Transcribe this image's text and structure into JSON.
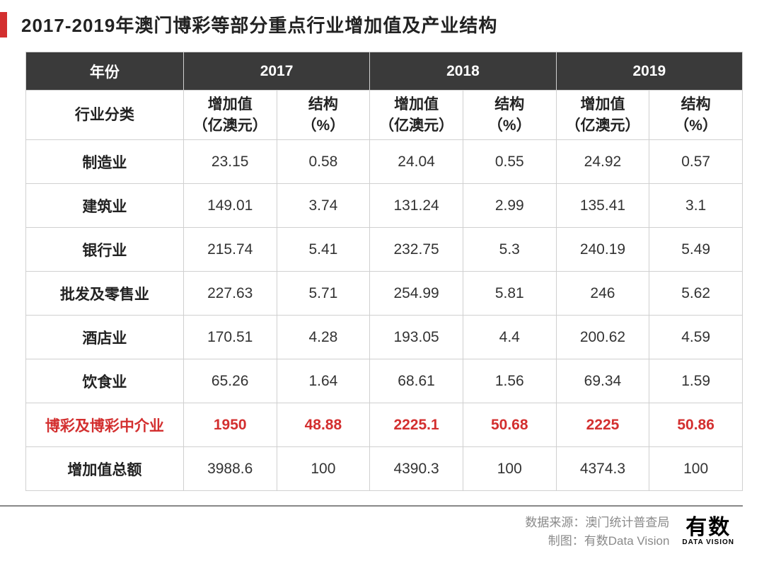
{
  "title": "2017-2019年澳门博彩等部分重点行业增加值及产业结构",
  "colors": {
    "accent_red": "#d32f2f",
    "header_bg": "#3a3a3a",
    "header_fg": "#ffffff",
    "border": "#d0d0d0",
    "text": "#333333",
    "footer_text": "#8a8a8a"
  },
  "table": {
    "type": "table",
    "header_row1": {
      "year_label": "年份",
      "years": [
        "2017",
        "2018",
        "2019"
      ]
    },
    "header_row2": {
      "category_label": "行业分类",
      "value_label": "增加值\n（亿澳元）",
      "structure_label": "结构\n（%）"
    },
    "rows": [
      {
        "label": "制造业",
        "v17": "23.15",
        "s17": "0.58",
        "v18": "24.04",
        "s18": "0.55",
        "v19": "24.92",
        "s19": "0.57",
        "highlight": false
      },
      {
        "label": "建筑业",
        "v17": "149.01",
        "s17": "3.74",
        "v18": "131.24",
        "s18": "2.99",
        "v19": "135.41",
        "s19": "3.1",
        "highlight": false
      },
      {
        "label": "银行业",
        "v17": "215.74",
        "s17": "5.41",
        "v18": "232.75",
        "s18": "5.3",
        "v19": "240.19",
        "s19": "5.49",
        "highlight": false
      },
      {
        "label": "批发及零售业",
        "v17": "227.63",
        "s17": "5.71",
        "v18": "254.99",
        "s18": "5.81",
        "v19": "246",
        "s19": "5.62",
        "highlight": false
      },
      {
        "label": "酒店业",
        "v17": "170.51",
        "s17": "4.28",
        "v18": "193.05",
        "s18": "4.4",
        "v19": "200.62",
        "s19": "4.59",
        "highlight": false
      },
      {
        "label": "饮食业",
        "v17": "65.26",
        "s17": "1.64",
        "v18": "68.61",
        "s18": "1.56",
        "v19": "69.34",
        "s19": "1.59",
        "highlight": false
      },
      {
        "label": "博彩及博彩中介业",
        "v17": "1950",
        "s17": "48.88",
        "v18": "2225.1",
        "s18": "50.68",
        "v19": "2225",
        "s19": "50.86",
        "highlight": true
      },
      {
        "label": "增加值总额",
        "v17": "3988.6",
        "s17": "100",
        "v18": "4390.3",
        "s18": "100",
        "v19": "4374.3",
        "s19": "100",
        "highlight": false
      }
    ]
  },
  "footer": {
    "source_label": "数据来源：",
    "source_value": "澳门统计普查局",
    "credit_label": "制图：",
    "credit_value": "有数Data Vision",
    "logo_cn": "有数",
    "logo_en": "DATA VISION"
  }
}
